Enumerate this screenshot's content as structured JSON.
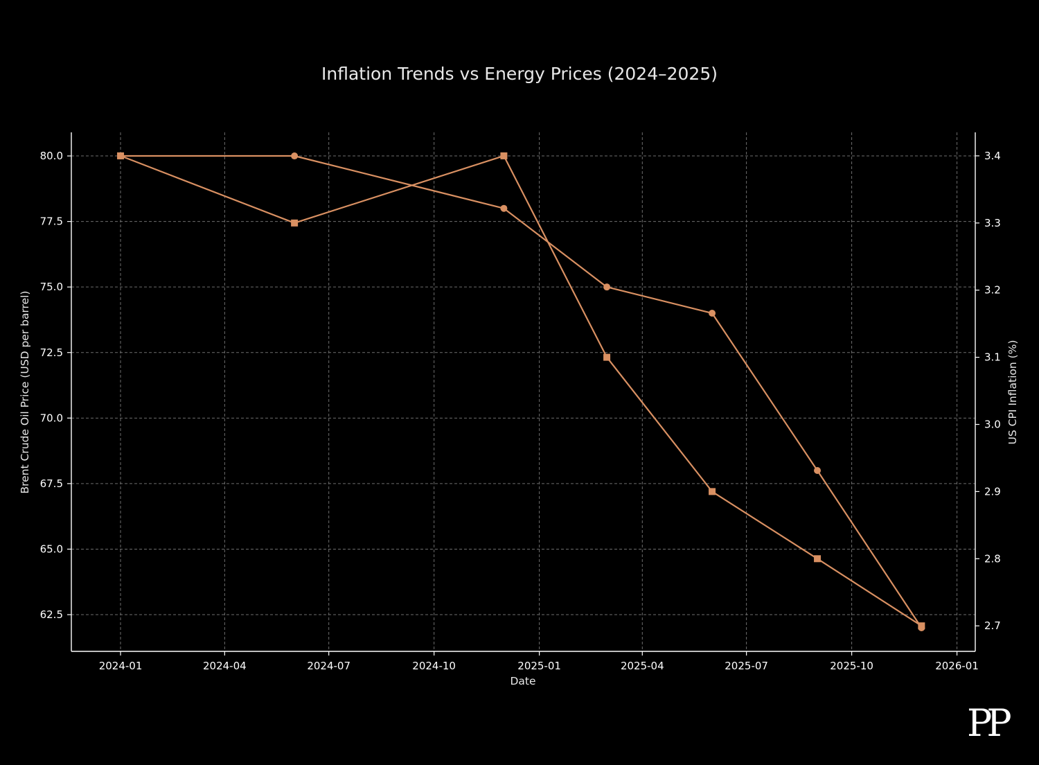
{
  "brand": {
    "logo_text": "PP"
  },
  "colors": {
    "background": "#000000",
    "series": "#d99062",
    "grid": "#6e6e6e",
    "text": "#ffffff"
  },
  "chart_data": {
    "type": "line",
    "title": "Inflation Trends vs Energy Prices (2024–2025)",
    "xlabel": "Date",
    "ylabel_left": "Brent Crude Oil Price (USD per barrel)",
    "ylabel_right": "US CPI Inflation (%)",
    "x": [
      "2024-01-01",
      "2024-06-01",
      "2024-12-01",
      "2025-03-01",
      "2025-06-01",
      "2025-09-01",
      "2025-12-01"
    ],
    "xlim": [
      "2023-11-19",
      "2026-01-17"
    ],
    "ylim_left": [
      61.1,
      80.9
    ],
    "ylim_right": [
      2.662,
      3.435
    ],
    "x_ticks": [
      "2024-01",
      "2024-04",
      "2024-07",
      "2024-10",
      "2025-01",
      "2025-04",
      "2025-07",
      "2025-10",
      "2026-01"
    ],
    "y_ticks_left": [
      "62.5",
      "65.0",
      "67.5",
      "70.0",
      "72.5",
      "75.0",
      "77.5",
      "80.0"
    ],
    "y_ticks_right": [
      "2.7",
      "2.8",
      "2.9",
      "3.0",
      "3.1",
      "3.2",
      "3.3",
      "3.4"
    ],
    "grid": true,
    "legend": "none",
    "series": [
      {
        "axis": "left",
        "marker": "circle",
        "color": "#d99062",
        "values": [
          80.0,
          80.0,
          78.0,
          75.0,
          74.0,
          68.0,
          62.0
        ]
      },
      {
        "axis": "right",
        "marker": "square",
        "color": "#d99062",
        "values": [
          3.4,
          3.3,
          3.4,
          3.1,
          2.9,
          2.8,
          2.7
        ]
      }
    ]
  }
}
